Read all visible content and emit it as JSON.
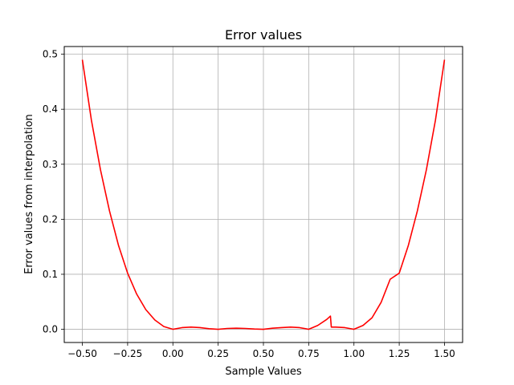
{
  "chart_data": {
    "type": "line",
    "title": "Error values",
    "xlabel": "Sample Values",
    "ylabel": "Error values from interpolation",
    "xlim": [
      -0.6,
      1.6
    ],
    "ylim": [
      -0.024,
      0.514
    ],
    "grid": true,
    "x_ticks": [
      -0.5,
      -0.25,
      0.0,
      0.25,
      0.5,
      0.75,
      1.0,
      1.25,
      1.5
    ],
    "x_tick_labels": [
      "−0.50",
      "−0.25",
      "0.00",
      "0.25",
      "0.50",
      "0.75",
      "1.00",
      "1.25",
      "1.50"
    ],
    "y_ticks": [
      0.0,
      0.1,
      0.2,
      0.3,
      0.4,
      0.5
    ],
    "y_tick_labels": [
      "0.0",
      "0.1",
      "0.2",
      "0.3",
      "0.4",
      "0.5"
    ],
    "series": [
      {
        "color": "#ff0000",
        "x": [
          -0.5,
          -0.45,
          -0.4,
          -0.35,
          -0.3,
          -0.25,
          -0.2,
          -0.15,
          -0.1,
          -0.05,
          0.0,
          0.05,
          0.1,
          0.15,
          0.2,
          0.25,
          0.3,
          0.35,
          0.4,
          0.45,
          0.5,
          0.55,
          0.6,
          0.65,
          0.7,
          0.75,
          0.8,
          0.85,
          0.87,
          0.875,
          0.9,
          0.95,
          1.0,
          1.05,
          1.1,
          1.15,
          1.2,
          1.25,
          1.3,
          1.35,
          1.4,
          1.45,
          1.5
        ],
        "y": [
          0.49,
          0.38,
          0.29,
          0.215,
          0.152,
          0.102,
          0.064,
          0.036,
          0.017,
          0.005,
          0.0,
          0.003,
          0.004,
          0.003,
          0.001,
          0.0,
          0.0015,
          0.002,
          0.0015,
          0.0005,
          0.0,
          0.002,
          0.003,
          0.004,
          0.003,
          0.0,
          0.007,
          0.018,
          0.024,
          0.004,
          0.004,
          0.003,
          0.0,
          0.007,
          0.021,
          0.049,
          0.091,
          0.102,
          0.152,
          0.215,
          0.29,
          0.38,
          0.49
        ]
      }
    ]
  }
}
